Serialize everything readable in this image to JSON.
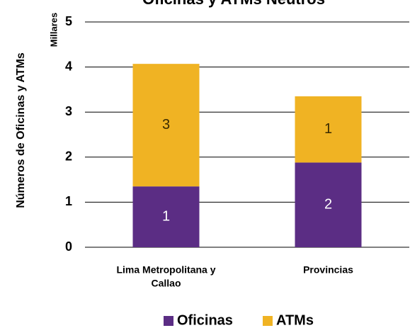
{
  "chart_data": {
    "type": "bar",
    "stacked": true,
    "title": "Oficinas y ATMs Neutros",
    "ylabel": "Números de Oficinas y ATMs",
    "y_unit": "Millares",
    "ylim": [
      0,
      5
    ],
    "yticks": [
      "0",
      "1",
      "2",
      "3",
      "4",
      "5"
    ],
    "grid": true,
    "legend_position": "bottom",
    "categories": [
      {
        "lines": [
          "Lima Metropolitana y",
          "Callao"
        ]
      },
      {
        "lines": [
          "Provincias"
        ]
      }
    ],
    "series": [
      {
        "name": "Oficinas",
        "color": "#5b2d84",
        "label_color": "#ffffff",
        "values": [
          1.35,
          1.88
        ],
        "data_labels": [
          "1",
          "2"
        ]
      },
      {
        "name": "ATMs",
        "color": "#f0b323",
        "label_color": "#3a2a00",
        "values": [
          2.72,
          1.47
        ],
        "data_labels": [
          "3",
          "1"
        ]
      }
    ]
  }
}
